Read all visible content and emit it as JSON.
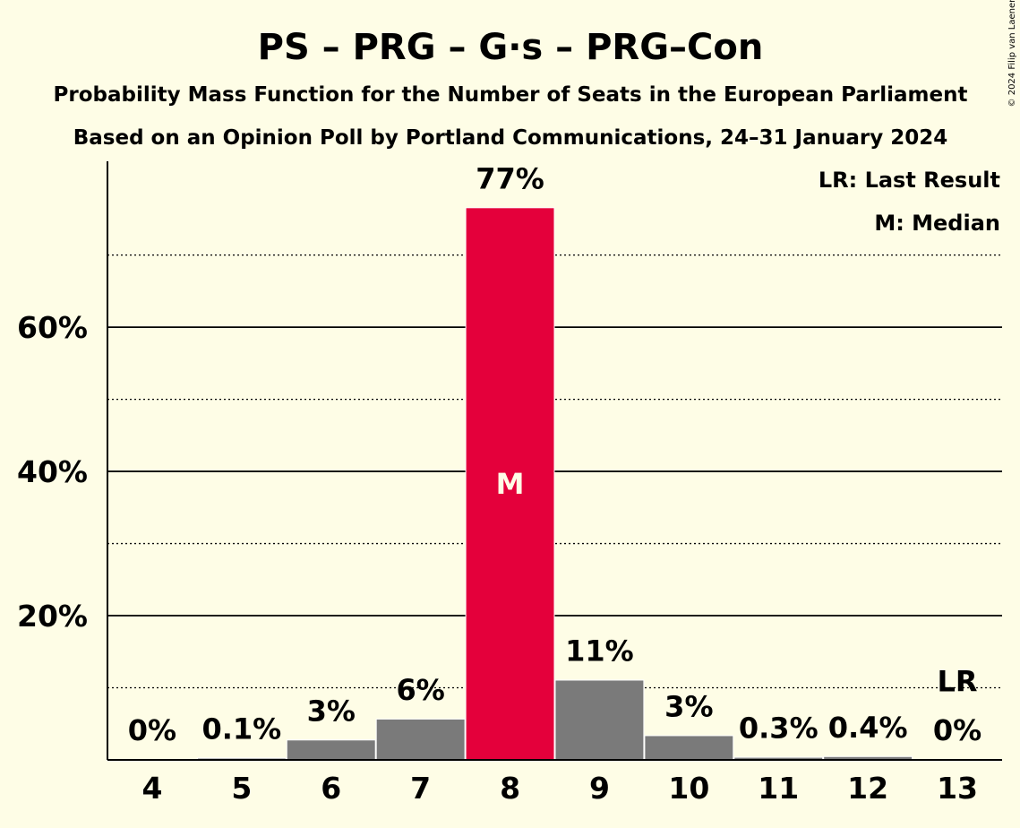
{
  "chart_data": {
    "type": "bar",
    "title": "PS – PRG – G·s – PRG–Con",
    "subtitle_lines": [
      "Probability Mass Function for the Number of Seats in the European Parliament",
      "Based on an Opinion Poll by Portland Communications, 24–31 January 2024"
    ],
    "categories": [
      "4",
      "5",
      "6",
      "7",
      "8",
      "9",
      "10",
      "11",
      "12",
      "13"
    ],
    "values": [
      0,
      0.1,
      2.7,
      5.6,
      76.5,
      11,
      3.3,
      0.3,
      0.4,
      0
    ],
    "data_labels": [
      "0%",
      "0.1%",
      "3%",
      "6%",
      "77%",
      "11%",
      "3%",
      "0.3%",
      "0.4%",
      "0%"
    ],
    "ylim": [
      0,
      83
    ],
    "y_ticks": [
      20,
      40,
      60
    ],
    "y_tick_labels": [
      "20%",
      "40%",
      "60%"
    ],
    "minor_gridlines": [
      10,
      30,
      50,
      70
    ],
    "median_category": "8",
    "median_marker": "M",
    "last_result_category": "13",
    "last_result_marker": "LR",
    "legend": [
      "LR: Last Result",
      "M: Median"
    ],
    "legend_placement": "top-right",
    "colors": {
      "background": "#fefde6",
      "bar": "#7a7a7a",
      "median_bar": "#e4003b",
      "axis": "#000000"
    },
    "copyright": "© 2024 Filip van Laenen"
  }
}
